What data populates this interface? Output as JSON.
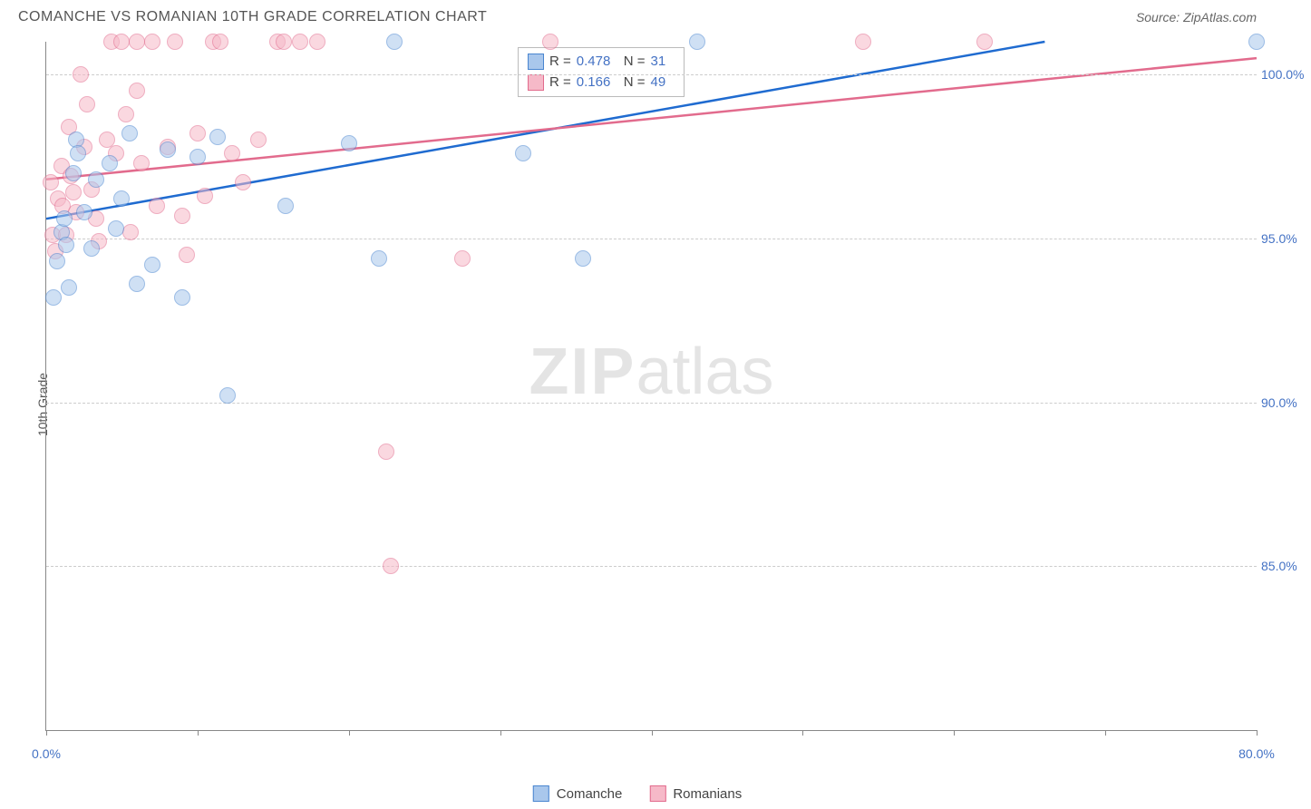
{
  "header": {
    "title": "COMANCHE VS ROMANIAN 10TH GRADE CORRELATION CHART",
    "source_label": "Source: ZipAtlas.com"
  },
  "chart": {
    "type": "scatter",
    "yaxis_title": "10th Grade",
    "background_color": "#ffffff",
    "grid_color": "#cccccc",
    "axis_color": "#888888",
    "xlim": [
      0,
      80
    ],
    "ylim": [
      80,
      101
    ],
    "xtick_positions": [
      0,
      10,
      20,
      30,
      40,
      50,
      60,
      70,
      80
    ],
    "xtick_labels": {
      "0": "0.0%",
      "80": "80.0%"
    },
    "ytick_positions": [
      85,
      90,
      95,
      100
    ],
    "ytick_labels": {
      "85": "85.0%",
      "90": "90.0%",
      "95": "95.0%",
      "100": "100.0%"
    },
    "marker_radius": 9,
    "marker_opacity": 0.55,
    "line_width": 2.5,
    "watermark": {
      "text_bold": "ZIP",
      "text_light": "atlas"
    },
    "series": [
      {
        "name": "Comanche",
        "color_fill": "#a9c7ec",
        "color_stroke": "#4a86d0",
        "line_color": "#1f6bd0",
        "R": "0.478",
        "N": "31",
        "trend": {
          "x1": 0,
          "y1": 95.6,
          "x2": 66,
          "y2": 101
        },
        "points": [
          [
            0.5,
            93.2
          ],
          [
            0.7,
            94.3
          ],
          [
            1.0,
            95.2
          ],
          [
            1.2,
            95.6
          ],
          [
            1.3,
            94.8
          ],
          [
            1.5,
            93.5
          ],
          [
            1.8,
            97.0
          ],
          [
            2.0,
            98.0
          ],
          [
            2.1,
            97.6
          ],
          [
            2.5,
            95.8
          ],
          [
            3.0,
            94.7
          ],
          [
            3.3,
            96.8
          ],
          [
            4.2,
            97.3
          ],
          [
            4.6,
            95.3
          ],
          [
            5.0,
            96.2
          ],
          [
            5.5,
            98.2
          ],
          [
            6.0,
            93.6
          ],
          [
            7.0,
            94.2
          ],
          [
            8.0,
            97.7
          ],
          [
            9.0,
            93.2
          ],
          [
            10.0,
            97.5
          ],
          [
            11.3,
            98.1
          ],
          [
            12.0,
            90.2
          ],
          [
            15.8,
            96.0
          ],
          [
            20.0,
            97.9
          ],
          [
            22.0,
            94.4
          ],
          [
            23.0,
            101.0
          ],
          [
            31.5,
            97.6
          ],
          [
            35.5,
            94.4
          ],
          [
            43.0,
            101.0
          ],
          [
            80.0,
            101.0
          ]
        ]
      },
      {
        "name": "Romanians",
        "color_fill": "#f6b9c8",
        "color_stroke": "#e26b8d",
        "line_color": "#e26b8d",
        "R": "0.166",
        "N": "49",
        "trend": {
          "x1": 0,
          "y1": 96.8,
          "x2": 80,
          "y2": 100.5
        },
        "points": [
          [
            0.3,
            96.7
          ],
          [
            0.4,
            95.1
          ],
          [
            0.6,
            94.6
          ],
          [
            0.8,
            96.2
          ],
          [
            1.0,
            97.2
          ],
          [
            1.1,
            96.0
          ],
          [
            1.3,
            95.1
          ],
          [
            1.5,
            98.4
          ],
          [
            1.6,
            96.9
          ],
          [
            1.8,
            96.4
          ],
          [
            2.0,
            95.8
          ],
          [
            2.3,
            100.0
          ],
          [
            2.5,
            97.8
          ],
          [
            2.7,
            99.1
          ],
          [
            3.0,
            96.5
          ],
          [
            3.3,
            95.6
          ],
          [
            3.5,
            94.9
          ],
          [
            4.0,
            98.0
          ],
          [
            4.3,
            101.0
          ],
          [
            4.6,
            97.6
          ],
          [
            5.0,
            101.0
          ],
          [
            5.3,
            98.8
          ],
          [
            5.6,
            95.2
          ],
          [
            6.0,
            99.5
          ],
          [
            6.0,
            101.0
          ],
          [
            6.3,
            97.3
          ],
          [
            7.0,
            101.0
          ],
          [
            7.3,
            96.0
          ],
          [
            8.0,
            97.8
          ],
          [
            8.5,
            101.0
          ],
          [
            9.0,
            95.7
          ],
          [
            9.3,
            94.5
          ],
          [
            10.0,
            98.2
          ],
          [
            10.5,
            96.3
          ],
          [
            11.0,
            101.0
          ],
          [
            11.5,
            101.0
          ],
          [
            12.3,
            97.6
          ],
          [
            13.0,
            96.7
          ],
          [
            14.0,
            98.0
          ],
          [
            15.3,
            101.0
          ],
          [
            15.7,
            101.0
          ],
          [
            16.8,
            101.0
          ],
          [
            17.9,
            101.0
          ],
          [
            22.5,
            88.5
          ],
          [
            22.8,
            85.0
          ],
          [
            27.5,
            94.4
          ],
          [
            33.3,
            101.0
          ],
          [
            54.0,
            101.0
          ],
          [
            62.0,
            101.0
          ]
        ]
      }
    ],
    "stats_legend": {
      "R_label": "R =",
      "N_label": "N ="
    }
  }
}
